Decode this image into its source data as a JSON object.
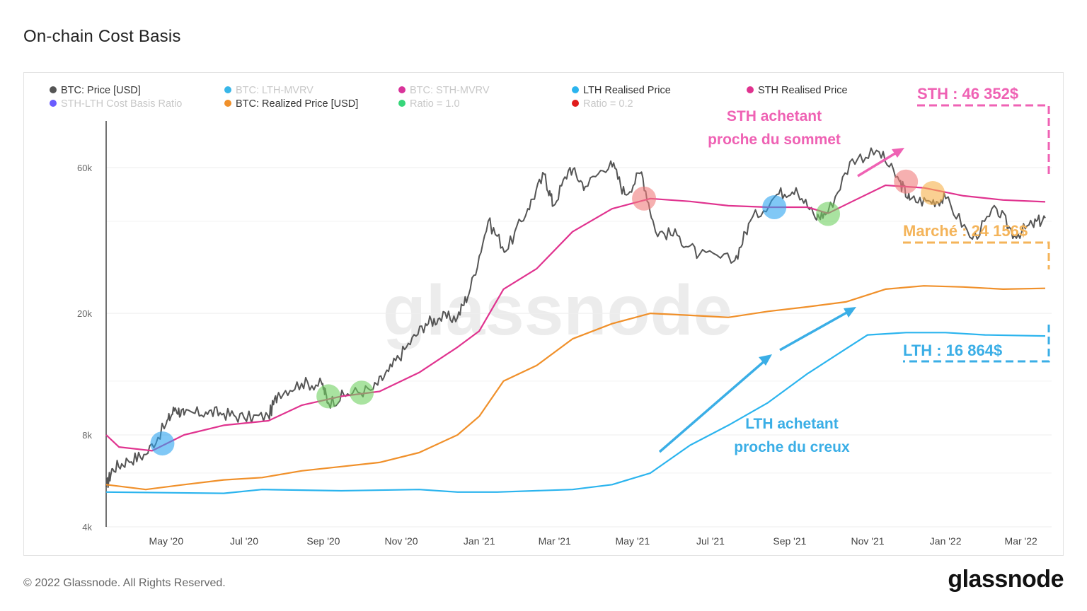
{
  "page": {
    "title": "On-chain Cost Basis",
    "copyright": "© 2022 Glassnode. All Rights Reserved.",
    "brand": "glassnode",
    "watermark": "glassnode"
  },
  "chart_data": {
    "type": "line",
    "yscale": "log",
    "ylim": [
      4000,
      80000
    ],
    "xlim": [
      "2020-03-15",
      "2022-03-25"
    ],
    "grid": true,
    "legend_position": "top",
    "y_ticks": [
      {
        "value": 60000,
        "label": "60k"
      },
      {
        "value": 20000,
        "label": "20k"
      },
      {
        "value": 8000,
        "label": "8k"
      },
      {
        "value": 4000,
        "label": "4k"
      }
    ],
    "x_ticks": [
      {
        "date": "2020-05-01",
        "label": "May '20"
      },
      {
        "date": "2020-07-01",
        "label": "Jul '20"
      },
      {
        "date": "2020-09-01",
        "label": "Sep '20"
      },
      {
        "date": "2020-11-01",
        "label": "Nov '20"
      },
      {
        "date": "2021-01-01",
        "label": "Jan '21"
      },
      {
        "date": "2021-03-01",
        "label": "Mar '21"
      },
      {
        "date": "2021-05-01",
        "label": "May '21"
      },
      {
        "date": "2021-07-01",
        "label": "Jul '21"
      },
      {
        "date": "2021-09-01",
        "label": "Sep '21"
      },
      {
        "date": "2021-11-01",
        "label": "Nov '21"
      },
      {
        "date": "2022-01-01",
        "label": "Jan '22"
      },
      {
        "date": "2022-03-01",
        "label": "Mar '22"
      }
    ],
    "legend": [
      {
        "label": "BTC: Price [USD]",
        "color": "#555555",
        "active": true
      },
      {
        "label": "BTC: LTH-MVRV",
        "color": "#38b6e8",
        "active": false
      },
      {
        "label": "BTC: STH-MVRV",
        "color": "#d9339a",
        "active": false
      },
      {
        "label": "LTH Realised Price",
        "color": "#2bb4ee",
        "active": true
      },
      {
        "label": "STH Realised Price",
        "color": "#e0338f",
        "active": true
      },
      {
        "label": "STH-LTH Cost Basis Ratio",
        "color": "#6a5cff",
        "active": false
      },
      {
        "label": "BTC: Realized Price [USD]",
        "color": "#f0902a",
        "active": true
      },
      {
        "label": "Ratio = 1.0",
        "color": "#37d67a",
        "active": false
      },
      {
        "label": "Ratio = 0.2",
        "color": "#e01b1b",
        "active": false
      }
    ],
    "series": [
      {
        "name": "BTC: Price [USD]",
        "color": "#555555",
        "points": [
          [
            "2020-03-15",
            5400
          ],
          [
            "2020-03-20",
            6200
          ],
          [
            "2020-04-01",
            6600
          ],
          [
            "2020-04-15",
            6900
          ],
          [
            "2020-05-01",
            8700
          ],
          [
            "2020-05-08",
            9800
          ],
          [
            "2020-05-15",
            9300
          ],
          [
            "2020-06-01",
            9500
          ],
          [
            "2020-06-15",
            9400
          ],
          [
            "2020-07-01",
            9100
          ],
          [
            "2020-07-20",
            9200
          ],
          [
            "2020-07-28",
            11000
          ],
          [
            "2020-08-15",
            11800
          ],
          [
            "2020-08-31",
            11700
          ],
          [
            "2020-09-05",
            10200
          ],
          [
            "2020-09-20",
            10900
          ],
          [
            "2020-10-10",
            11300
          ],
          [
            "2020-10-22",
            12900
          ],
          [
            "2020-11-05",
            15500
          ],
          [
            "2020-11-20",
            18500
          ],
          [
            "2020-12-01",
            19300
          ],
          [
            "2020-12-15",
            19400
          ],
          [
            "2020-12-25",
            24000
          ],
          [
            "2021-01-08",
            40000
          ],
          [
            "2021-01-22",
            32000
          ],
          [
            "2021-02-08",
            44000
          ],
          [
            "2021-02-21",
            57000
          ],
          [
            "2021-02-28",
            45000
          ],
          [
            "2021-03-13",
            60000
          ],
          [
            "2021-03-25",
            52000
          ],
          [
            "2021-04-14",
            63000
          ],
          [
            "2021-04-25",
            49000
          ],
          [
            "2021-05-08",
            58000
          ],
          [
            "2021-05-19",
            37000
          ],
          [
            "2021-06-05",
            36000
          ],
          [
            "2021-06-22",
            31000
          ],
          [
            "2021-07-20",
            29800
          ],
          [
            "2021-08-01",
            40000
          ],
          [
            "2021-08-22",
            49000
          ],
          [
            "2021-09-06",
            51500
          ],
          [
            "2021-09-21",
            41000
          ],
          [
            "2021-10-01",
            43000
          ],
          [
            "2021-10-20",
            64000
          ],
          [
            "2021-11-10",
            67500
          ],
          [
            "2021-11-26",
            54000
          ],
          [
            "2021-12-04",
            47000
          ],
          [
            "2021-12-20",
            46500
          ],
          [
            "2022-01-01",
            47500
          ],
          [
            "2022-01-22",
            35000
          ],
          [
            "2022-02-10",
            44000
          ],
          [
            "2022-02-24",
            36000
          ],
          [
            "2022-03-10",
            39000
          ],
          [
            "2022-03-20",
            41000
          ]
        ]
      },
      {
        "name": "STH Realised Price",
        "color": "#e0338f",
        "points": [
          [
            "2020-03-15",
            8000
          ],
          [
            "2020-03-25",
            7300
          ],
          [
            "2020-04-20",
            7100
          ],
          [
            "2020-05-15",
            8000
          ],
          [
            "2020-06-15",
            8600
          ],
          [
            "2020-07-20",
            8900
          ],
          [
            "2020-08-15",
            10000
          ],
          [
            "2020-09-15",
            10700
          ],
          [
            "2020-10-15",
            11100
          ],
          [
            "2020-11-15",
            12800
          ],
          [
            "2020-12-15",
            15500
          ],
          [
            "2021-01-01",
            17500
          ],
          [
            "2021-01-20",
            24000
          ],
          [
            "2021-02-15",
            28000
          ],
          [
            "2021-03-15",
            37000
          ],
          [
            "2021-04-15",
            44000
          ],
          [
            "2021-05-15",
            47500
          ],
          [
            "2021-06-15",
            46500
          ],
          [
            "2021-07-15",
            45000
          ],
          [
            "2021-08-15",
            44500
          ],
          [
            "2021-09-15",
            44500
          ],
          [
            "2021-10-01",
            42500
          ],
          [
            "2021-10-20",
            46500
          ],
          [
            "2021-11-15",
            52500
          ],
          [
            "2021-12-15",
            51500
          ],
          [
            "2022-01-15",
            48500
          ],
          [
            "2022-02-15",
            47000
          ],
          [
            "2022-03-20",
            46352
          ]
        ]
      },
      {
        "name": "BTC: Realized Price [USD]",
        "color": "#f0902a",
        "points": [
          [
            "2020-03-15",
            5500
          ],
          [
            "2020-04-15",
            5300
          ],
          [
            "2020-05-15",
            5500
          ],
          [
            "2020-06-15",
            5700
          ],
          [
            "2020-07-15",
            5800
          ],
          [
            "2020-08-15",
            6100
          ],
          [
            "2020-09-15",
            6300
          ],
          [
            "2020-10-15",
            6500
          ],
          [
            "2020-11-15",
            7000
          ],
          [
            "2020-12-15",
            8000
          ],
          [
            "2021-01-01",
            9200
          ],
          [
            "2021-01-20",
            12000
          ],
          [
            "2021-02-15",
            13500
          ],
          [
            "2021-03-15",
            16500
          ],
          [
            "2021-04-15",
            18500
          ],
          [
            "2021-05-15",
            20000
          ],
          [
            "2021-06-15",
            19700
          ],
          [
            "2021-07-15",
            19400
          ],
          [
            "2021-08-15",
            20300
          ],
          [
            "2021-09-15",
            21000
          ],
          [
            "2021-10-15",
            21800
          ],
          [
            "2021-11-15",
            24000
          ],
          [
            "2021-12-15",
            24600
          ],
          [
            "2022-01-15",
            24400
          ],
          [
            "2022-02-15",
            24000
          ],
          [
            "2022-03-20",
            24156
          ]
        ]
      },
      {
        "name": "LTH Realised Price",
        "color": "#2bb4ee",
        "points": [
          [
            "2020-03-15",
            5200
          ],
          [
            "2020-06-15",
            5150
          ],
          [
            "2020-07-15",
            5300
          ],
          [
            "2020-09-15",
            5250
          ],
          [
            "2020-11-15",
            5300
          ],
          [
            "2020-12-15",
            5200
          ],
          [
            "2021-01-15",
            5200
          ],
          [
            "2021-03-15",
            5300
          ],
          [
            "2021-04-15",
            5500
          ],
          [
            "2021-05-15",
            6000
          ],
          [
            "2021-06-15",
            7400
          ],
          [
            "2021-07-15",
            8600
          ],
          [
            "2021-08-15",
            10200
          ],
          [
            "2021-09-15",
            12700
          ],
          [
            "2021-10-15",
            15300
          ],
          [
            "2021-11-01",
            17000
          ],
          [
            "2021-12-01",
            17300
          ],
          [
            "2022-01-01",
            17300
          ],
          [
            "2022-02-01",
            17000
          ],
          [
            "2022-03-20",
            16864
          ]
        ]
      }
    ],
    "annotations": {
      "sth_label": "STH : 46 352$",
      "sth_note_line1": "STH achetant",
      "sth_note_line2": "proche du sommet",
      "market_label": "Marché : 24 156$",
      "lth_label": "LTH : 16 864$",
      "lth_note_line1": "LTH achetant",
      "lth_note_line2": "proche du creux",
      "markers": [
        {
          "date": "2020-04-28",
          "value": 7500,
          "color": "#2ba4f0"
        },
        {
          "date": "2020-09-05",
          "value": 10700,
          "color": "#6fd160"
        },
        {
          "date": "2020-10-01",
          "value": 11000,
          "color": "#6fd160"
        },
        {
          "date": "2021-05-10",
          "value": 47500,
          "color": "#f07c7c"
        },
        {
          "date": "2021-08-20",
          "value": 44500,
          "color": "#2ba4f0"
        },
        {
          "date": "2021-10-01",
          "value": 42300,
          "color": "#6fd160"
        },
        {
          "date": "2021-12-01",
          "value": 54000,
          "color": "#f07c7c"
        },
        {
          "date": "2021-12-22",
          "value": 49500,
          "color": "#f7b04a"
        }
      ]
    }
  }
}
